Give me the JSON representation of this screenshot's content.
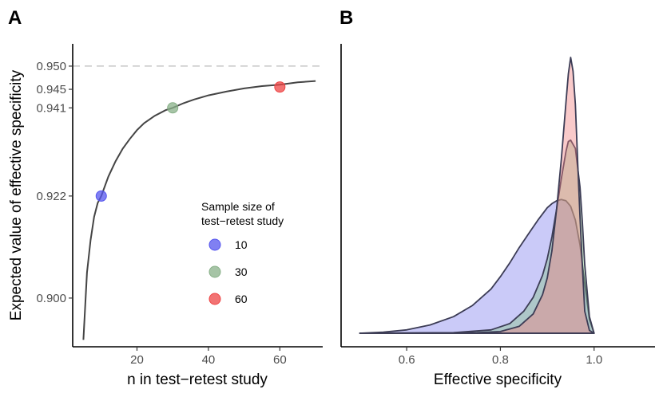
{
  "panels": {
    "a_label": "A",
    "b_label": "B"
  },
  "chart_data": [
    {
      "type": "line",
      "panel": "A",
      "xlabel": "n in test−retest study",
      "ylabel": "Expected value of effective specificity",
      "xlim": [
        2,
        72
      ],
      "ylim": [
        0.8895,
        0.9548
      ],
      "xticks": [
        20,
        40,
        60
      ],
      "xtick_labels": [
        "20",
        "40",
        "60"
      ],
      "yticks": [
        0.9,
        0.922,
        0.941,
        0.945,
        0.95
      ],
      "ytick_labels": [
        "0.900",
        "0.922",
        "0.941",
        "0.945",
        "0.950"
      ],
      "reference_line": {
        "y": 0.95,
        "style": "dashed"
      },
      "curve": {
        "x": [
          5,
          6,
          7,
          8,
          9,
          10,
          12,
          14,
          16,
          18,
          20,
          22,
          25,
          28,
          30,
          33,
          36,
          40,
          45,
          50,
          55,
          60,
          65,
          70
        ],
        "y": [
          0.891,
          0.9055,
          0.9125,
          0.9175,
          0.9205,
          0.922,
          0.9262,
          0.9295,
          0.9322,
          0.9343,
          0.9362,
          0.9377,
          0.9393,
          0.9405,
          0.941,
          0.942,
          0.9428,
          0.9437,
          0.9445,
          0.9452,
          0.9457,
          0.946,
          0.9465,
          0.9468
        ]
      },
      "points": [
        {
          "n": 10,
          "value": 0.922,
          "color": "#5555ee"
        },
        {
          "n": 30,
          "value": 0.941,
          "color": "#88b088"
        },
        {
          "n": 60,
          "value": 0.9455,
          "color": "#ee4444"
        }
      ],
      "legend": {
        "title_line1": "Sample size of",
        "title_line2": "test−retest study",
        "items": [
          {
            "label": "10",
            "color": "#5555ee"
          },
          {
            "label": "30",
            "color": "#88b088"
          },
          {
            "label": "60",
            "color": "#ee4444"
          }
        ]
      }
    },
    {
      "type": "area",
      "panel": "B",
      "xlabel": "Effective specificity",
      "xlim": [
        0.46,
        1.13
      ],
      "ylim": [
        0,
        1.0
      ],
      "xticks": [
        0.6,
        0.8,
        1.0
      ],
      "xtick_labels": [
        "0.6",
        "0.8",
        "1.0"
      ],
      "series": [
        {
          "name": "10",
          "color": "#8080ee",
          "x": [
            0.5,
            0.55,
            0.6,
            0.65,
            0.7,
            0.74,
            0.78,
            0.8,
            0.82,
            0.84,
            0.86,
            0.88,
            0.9,
            0.91,
            0.92,
            0.93,
            0.94,
            0.95,
            0.96,
            0.97,
            0.98,
            0.99,
            1.0
          ],
          "y": [
            0.0,
            0.004,
            0.012,
            0.03,
            0.06,
            0.1,
            0.16,
            0.205,
            0.255,
            0.31,
            0.36,
            0.41,
            0.455,
            0.47,
            0.48,
            0.485,
            0.48,
            0.46,
            0.41,
            0.32,
            0.18,
            0.05,
            0.0
          ]
        },
        {
          "name": "30",
          "color": "#88c488",
          "x": [
            0.5,
            0.7,
            0.78,
            0.82,
            0.85,
            0.87,
            0.89,
            0.9,
            0.91,
            0.92,
            0.93,
            0.94,
            0.945,
            0.95,
            0.96,
            0.97,
            0.975,
            0.98,
            0.99,
            1.0
          ],
          "y": [
            0.0,
            0.002,
            0.012,
            0.035,
            0.08,
            0.13,
            0.21,
            0.27,
            0.35,
            0.45,
            0.56,
            0.66,
            0.695,
            0.7,
            0.67,
            0.53,
            0.4,
            0.25,
            0.06,
            0.0
          ]
        },
        {
          "name": "60",
          "color": "#f08080",
          "x": [
            0.5,
            0.75,
            0.8,
            0.84,
            0.87,
            0.89,
            0.9,
            0.91,
            0.92,
            0.93,
            0.94,
            0.945,
            0.95,
            0.955,
            0.96,
            0.965,
            0.97,
            0.975,
            0.98,
            0.99,
            1.0
          ],
          "y": [
            0.0,
            0.002,
            0.006,
            0.025,
            0.07,
            0.14,
            0.2,
            0.3,
            0.45,
            0.63,
            0.84,
            0.94,
            1.0,
            0.95,
            0.83,
            0.62,
            0.42,
            0.24,
            0.08,
            0.01,
            0.0
          ]
        }
      ]
    }
  ]
}
